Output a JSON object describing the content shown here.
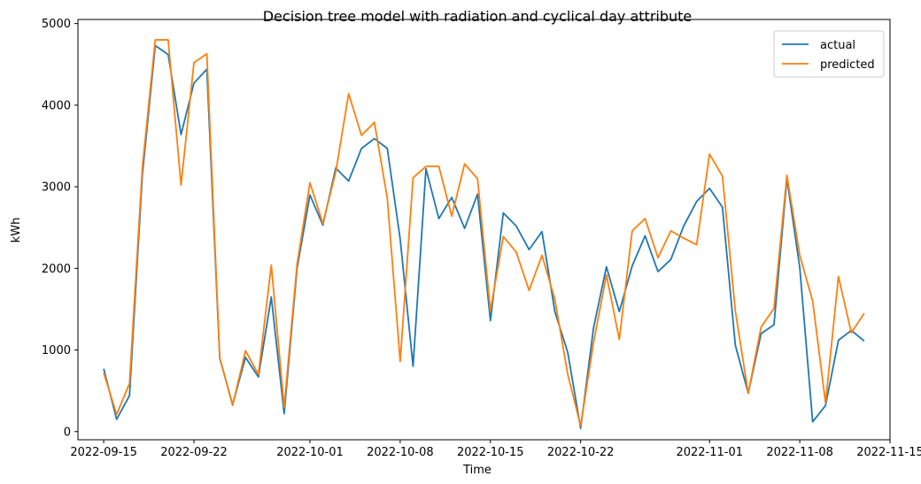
{
  "chart_data": {
    "type": "line",
    "title": "Decision tree model with radiation and cyclical day attribute",
    "xlabel": "Time",
    "ylabel": "kWh",
    "x_start": "2022-09-15",
    "x_ticks": [
      "2022-09-15",
      "2022-09-22",
      "2022-10-01",
      "2022-10-08",
      "2022-10-15",
      "2022-10-22",
      "2022-11-01",
      "2022-11-08",
      "2022-11-15"
    ],
    "xlim": [
      "2022-09-13",
      "2022-11-15"
    ],
    "y_ticks": [
      0,
      1000,
      2000,
      3000,
      4000,
      5000
    ],
    "ylim": [
      -100,
      5050
    ],
    "grid": false,
    "legend_position": "top-right",
    "series": [
      {
        "name": "actual",
        "color": "#1f77b4",
        "values": [
          770,
          150,
          440,
          3150,
          4730,
          4620,
          3640,
          4270,
          4440,
          900,
          330,
          910,
          670,
          1650,
          220,
          2000,
          2900,
          2530,
          3230,
          3070,
          3470,
          3590,
          3470,
          2360,
          800,
          3220,
          2610,
          2870,
          2490,
          2910,
          1360,
          2680,
          2520,
          2230,
          2450,
          1470,
          970,
          40,
          1270,
          2020,
          1470,
          2030,
          2400,
          1960,
          2110,
          2520,
          2820,
          2980,
          2750,
          1060,
          470,
          1200,
          1310,
          3100,
          2010,
          120,
          320,
          1120,
          1240,
          1110
        ]
      },
      {
        "name": "predicted",
        "color": "#ff7f0e",
        "values": [
          720,
          210,
          590,
          3240,
          4800,
          4800,
          3020,
          4520,
          4630,
          910,
          320,
          990,
          700,
          2040,
          300,
          2050,
          3050,
          2550,
          3180,
          4140,
          3630,
          3790,
          2860,
          860,
          3110,
          3250,
          3250,
          2640,
          3280,
          3100,
          1480,
          2390,
          2200,
          1730,
          2160,
          1620,
          700,
          70,
          1090,
          1920,
          1130,
          2460,
          2610,
          2130,
          2460,
          2370,
          2290,
          3400,
          3130,
          1480,
          470,
          1280,
          1510,
          3140,
          2160,
          1600,
          350,
          1900,
          1210,
          1450
        ]
      }
    ]
  }
}
